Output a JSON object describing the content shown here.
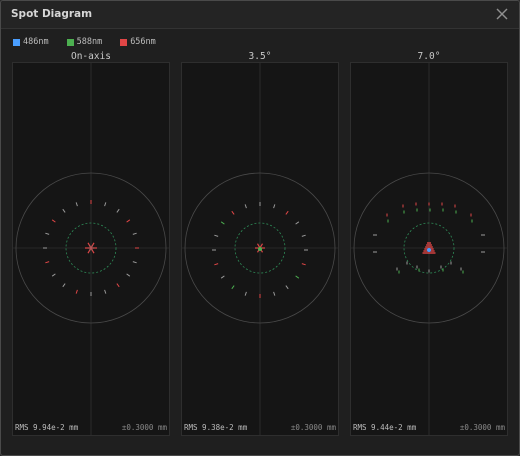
{
  "window": {
    "title": "Spot Diagram",
    "close_icon": "close-icon"
  },
  "colors": {
    "w486": "#4a9eff",
    "w588": "#4caf50",
    "w656": "#e04646"
  },
  "legend": [
    {
      "label": "486nm",
      "color": "#4a9eff"
    },
    {
      "label": "588nm",
      "color": "#4caf50"
    },
    {
      "label": "656nm",
      "color": "#e04646"
    }
  ],
  "panels": [
    {
      "title": "On-axis",
      "rms": "RMS 9.94e-2 mm",
      "scale": "±0.3000 mm"
    },
    {
      "title": "3.5°",
      "rms": "RMS 9.38e-2 mm",
      "scale": "±0.3000 mm"
    },
    {
      "title": "7.0°",
      "rms": "RMS 9.44e-2 mm",
      "scale": "±0.3000 mm"
    }
  ]
}
